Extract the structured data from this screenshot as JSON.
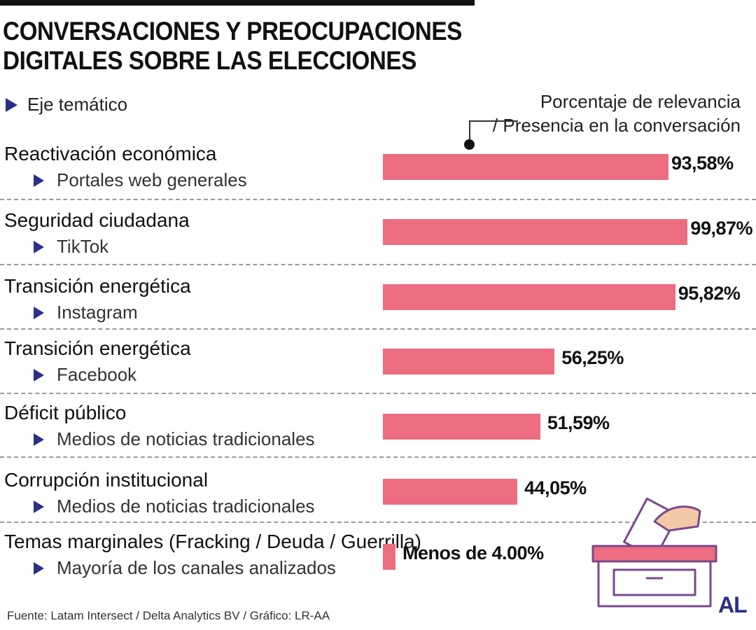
{
  "title_lines": [
    "CONVERSACIONES Y PREOCUPACIONES",
    "DIGITALES SOBRE LAS ELECCIONES"
  ],
  "legend": {
    "left": "Eje temático",
    "right_lines": [
      "Porcentaje de relevancia",
      "/ Presencia en la conversación"
    ]
  },
  "rows": [
    {
      "topic": "Reactivación económica",
      "channel": "Portales web generales",
      "label": "93,58%"
    },
    {
      "topic": "Seguridad ciudadana",
      "channel": "TikTok",
      "label": "99,87%"
    },
    {
      "topic": "Transición energética",
      "channel": "Instagram",
      "label": "95,82%"
    },
    {
      "topic": "Transición energética",
      "channel": "Facebook",
      "label": "56,25%"
    },
    {
      "topic": "Déficit público",
      "channel": "Medios de noticias tradicionales",
      "label": "51,59%"
    },
    {
      "topic": "Corrupción institucional",
      "channel": "Medios de noticias tradicionales",
      "label": "44,05%"
    },
    {
      "topic": "Temas marginales (Fracking / Deuda / Guerrilla)",
      "channel": "Mayoría de los canales analizados",
      "label": "Menos de 4.00%"
    }
  ],
  "source": "Fuente: Latam Intersect / Delta Analytics BV / Gráfico: LR-AA",
  "logo": "AL",
  "colors": {
    "bar": "#ec6c80",
    "accent": "#2c2f86"
  },
  "icons": {
    "bullet": "triangle-right-icon",
    "illustration": "ballot-box-icon"
  },
  "chart_data": {
    "type": "bar",
    "orientation": "horizontal",
    "categories": [
      "Reactivación económica",
      "Seguridad ciudadana",
      "Transición energética",
      "Transición energética",
      "Déficit público",
      "Corrupción institucional",
      "Temas marginales (Fracking / Deuda / Guerrilla)"
    ],
    "values": [
      93.58,
      99.87,
      95.82,
      56.25,
      51.59,
      44.05,
      4.0
    ],
    "xlim": [
      0,
      100
    ],
    "grid": false,
    "legend": "top-right"
  }
}
